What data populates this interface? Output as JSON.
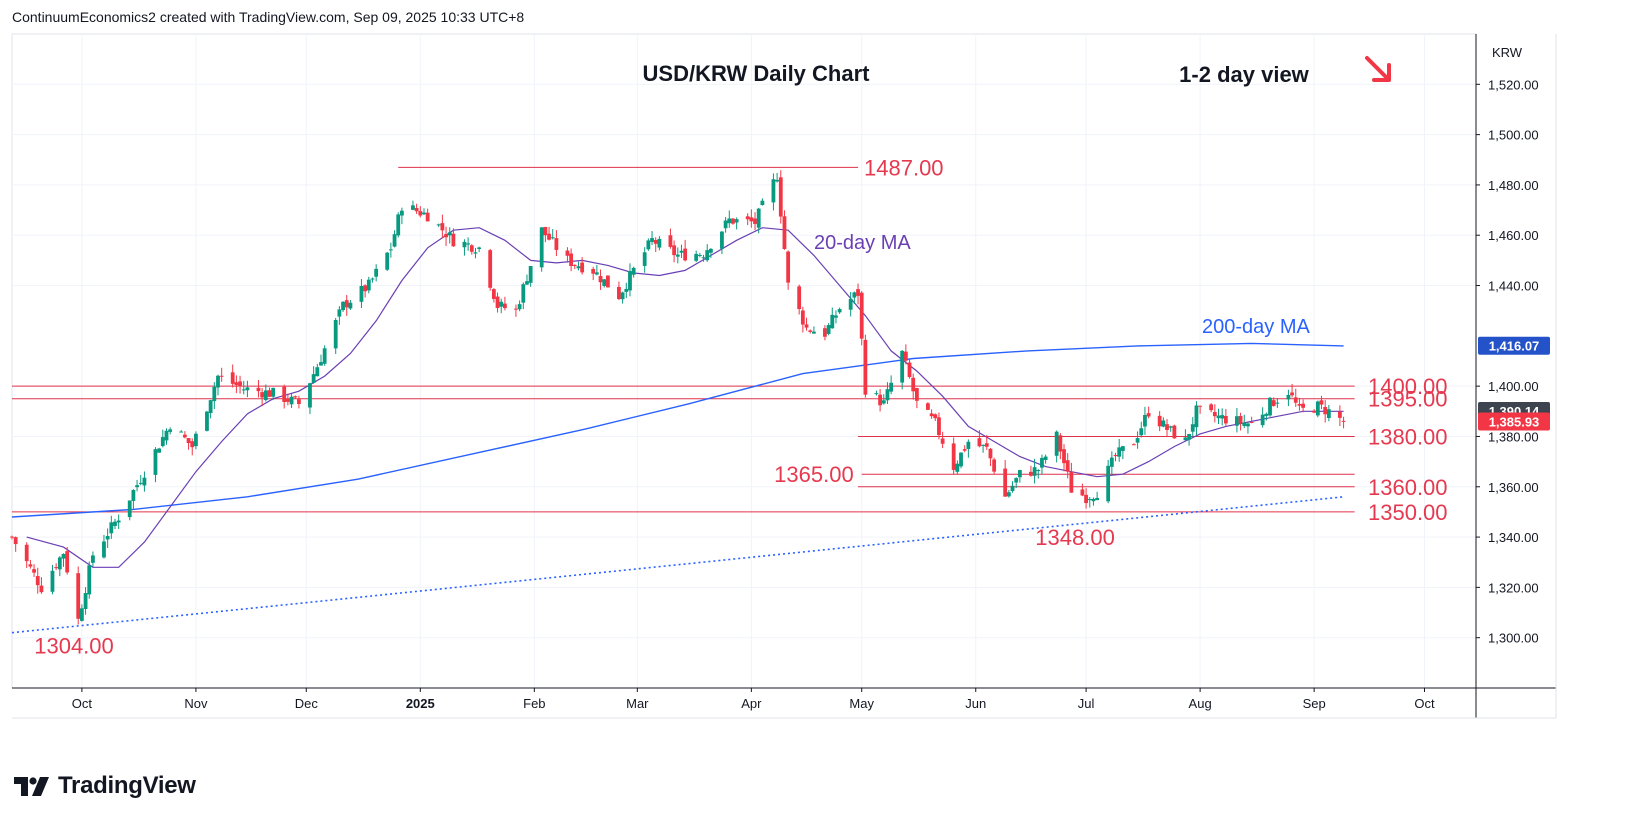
{
  "header": {
    "credit": "ContinuumEconomics2 created with TradingView.com, Sep 09, 2025 10:33 UTC+8"
  },
  "branding": {
    "logo_text": "TradingView",
    "logo_icon": "tradingview-logo-icon"
  },
  "colors": {
    "up": "#089981",
    "down": "#f23645",
    "ma20": "#6a3fb5",
    "ma200": "#2962ff",
    "level_line": "#e0314a",
    "label_red": "#e53950",
    "arrow": "#f23645",
    "price_tag_dark": "#131722",
    "ma200_tag": "#2453c9",
    "ma20_tag": "#3e4350"
  },
  "chart_data": {
    "type": "candlestick",
    "title": "USD/KRW Daily Chart",
    "view_label": "1-2 day view",
    "view_arrow_icon": "arrow-down-right-icon",
    "currency_label": "KRW",
    "ylim": [
      1280,
      1540
    ],
    "y_ticks": [
      {
        "value": 1300,
        "label": "1,300.00"
      },
      {
        "value": 1320,
        "label": "1,320.00"
      },
      {
        "value": 1340,
        "label": "1,340.00"
      },
      {
        "value": 1360,
        "label": "1,360.00"
      },
      {
        "value": 1380,
        "label": "1,380.00"
      },
      {
        "value": 1400,
        "label": "1,400.00"
      },
      {
        "value": 1440,
        "label": "1,440.00"
      },
      {
        "value": 1460,
        "label": "1,460.00"
      },
      {
        "value": 1480,
        "label": "1,480.00"
      },
      {
        "value": 1500,
        "label": "1,500.00"
      },
      {
        "value": 1520,
        "label": "1,520.00"
      }
    ],
    "x_ticks": [
      {
        "date": "2024-10-01",
        "label": "Oct",
        "bold": false
      },
      {
        "date": "2024-11-01",
        "label": "Nov",
        "bold": false
      },
      {
        "date": "2024-12-01",
        "label": "Dec",
        "bold": false
      },
      {
        "date": "2025-01-01",
        "label": "2025",
        "bold": true
      },
      {
        "date": "2025-02-01",
        "label": "Feb",
        "bold": false
      },
      {
        "date": "2025-03-01",
        "label": "Mar",
        "bold": false
      },
      {
        "date": "2025-04-01",
        "label": "Apr",
        "bold": false
      },
      {
        "date": "2025-05-01",
        "label": "May",
        "bold": false
      },
      {
        "date": "2025-06-01",
        "label": "Jun",
        "bold": false
      },
      {
        "date": "2025-07-01",
        "label": "Jul",
        "bold": false
      },
      {
        "date": "2025-08-01",
        "label": "Aug",
        "bold": false
      },
      {
        "date": "2025-09-01",
        "label": "Sep",
        "bold": false
      },
      {
        "date": "2025-10-01",
        "label": "Oct",
        "bold": false
      }
    ],
    "x_range": [
      "2024-09-12",
      "2025-10-15"
    ],
    "price_path": [
      {
        "date": "2024-09-12",
        "close": 1340
      },
      {
        "date": "2024-09-20",
        "close": 1320
      },
      {
        "date": "2024-09-26",
        "close": 1334
      },
      {
        "date": "2024-09-30",
        "close": 1307
      },
      {
        "date": "2024-10-04",
        "close": 1333
      },
      {
        "date": "2024-10-11",
        "close": 1348
      },
      {
        "date": "2024-10-18",
        "close": 1366
      },
      {
        "date": "2024-10-25",
        "close": 1385
      },
      {
        "date": "2024-10-31",
        "close": 1376
      },
      {
        "date": "2024-11-07",
        "close": 1404
      },
      {
        "date": "2024-11-14",
        "close": 1399
      },
      {
        "date": "2024-11-22",
        "close": 1397
      },
      {
        "date": "2024-11-29",
        "close": 1393
      },
      {
        "date": "2024-12-04",
        "close": 1408
      },
      {
        "date": "2024-12-11",
        "close": 1432
      },
      {
        "date": "2024-12-18",
        "close": 1440
      },
      {
        "date": "2024-12-24",
        "close": 1455
      },
      {
        "date": "2024-12-27",
        "close": 1472
      },
      {
        "date": "2025-01-03",
        "close": 1468
      },
      {
        "date": "2025-01-10",
        "close": 1458
      },
      {
        "date": "2025-01-17",
        "close": 1455
      },
      {
        "date": "2025-01-22",
        "close": 1432
      },
      {
        "date": "2025-01-27",
        "close": 1430
      },
      {
        "date": "2025-02-03",
        "close": 1462
      },
      {
        "date": "2025-02-10",
        "close": 1450
      },
      {
        "date": "2025-02-17",
        "close": 1446
      },
      {
        "date": "2025-02-24",
        "close": 1436
      },
      {
        "date": "2025-02-28",
        "close": 1446
      },
      {
        "date": "2025-03-05",
        "close": 1458
      },
      {
        "date": "2025-03-12",
        "close": 1452
      },
      {
        "date": "2025-03-19",
        "close": 1453
      },
      {
        "date": "2025-03-26",
        "close": 1466
      },
      {
        "date": "2025-04-02",
        "close": 1465
      },
      {
        "date": "2025-04-08",
        "close": 1484
      },
      {
        "date": "2025-04-11",
        "close": 1440
      },
      {
        "date": "2025-04-16",
        "close": 1423
      },
      {
        "date": "2025-04-21",
        "close": 1421
      },
      {
        "date": "2025-04-25",
        "close": 1431
      },
      {
        "date": "2025-04-30",
        "close": 1437
      },
      {
        "date": "2025-05-02",
        "close": 1399
      },
      {
        "date": "2025-05-07",
        "close": 1393
      },
      {
        "date": "2025-05-12",
        "close": 1413
      },
      {
        "date": "2025-05-16",
        "close": 1393
      },
      {
        "date": "2025-05-21",
        "close": 1385
      },
      {
        "date": "2025-05-26",
        "close": 1368
      },
      {
        "date": "2025-05-30",
        "close": 1378
      },
      {
        "date": "2025-06-04",
        "close": 1375
      },
      {
        "date": "2025-06-09",
        "close": 1356
      },
      {
        "date": "2025-06-13",
        "close": 1365
      },
      {
        "date": "2025-06-18",
        "close": 1367
      },
      {
        "date": "2025-06-23",
        "close": 1380
      },
      {
        "date": "2025-06-27",
        "close": 1359
      },
      {
        "date": "2025-07-01",
        "close": 1356
      },
      {
        "date": "2025-07-04",
        "close": 1358
      },
      {
        "date": "2025-07-09",
        "close": 1372
      },
      {
        "date": "2025-07-14",
        "close": 1378
      },
      {
        "date": "2025-07-18",
        "close": 1390
      },
      {
        "date": "2025-07-23",
        "close": 1383
      },
      {
        "date": "2025-07-28",
        "close": 1378
      },
      {
        "date": "2025-07-31",
        "close": 1390
      },
      {
        "date": "2025-08-05",
        "close": 1388
      },
      {
        "date": "2025-08-11",
        "close": 1386
      },
      {
        "date": "2025-08-15",
        "close": 1385
      },
      {
        "date": "2025-08-20",
        "close": 1393
      },
      {
        "date": "2025-08-25",
        "close": 1398
      },
      {
        "date": "2025-08-28",
        "close": 1390
      },
      {
        "date": "2025-09-02",
        "close": 1392
      },
      {
        "date": "2025-09-05",
        "close": 1390
      },
      {
        "date": "2025-09-09",
        "close": 1386
      }
    ],
    "ma20_path": [
      {
        "date": "2024-09-16",
        "value": 1340
      },
      {
        "date": "2024-09-26",
        "value": 1336
      },
      {
        "date": "2024-10-04",
        "value": 1328
      },
      {
        "date": "2024-10-11",
        "value": 1328
      },
      {
        "date": "2024-10-18",
        "value": 1338
      },
      {
        "date": "2024-10-25",
        "value": 1352
      },
      {
        "date": "2024-11-01",
        "value": 1366
      },
      {
        "date": "2024-11-08",
        "value": 1378
      },
      {
        "date": "2024-11-15",
        "value": 1389
      },
      {
        "date": "2024-11-22",
        "value": 1395
      },
      {
        "date": "2024-11-29",
        "value": 1398
      },
      {
        "date": "2024-12-06",
        "value": 1404
      },
      {
        "date": "2024-12-13",
        "value": 1413
      },
      {
        "date": "2024-12-20",
        "value": 1426
      },
      {
        "date": "2024-12-27",
        "value": 1442
      },
      {
        "date": "2025-01-03",
        "value": 1455
      },
      {
        "date": "2025-01-10",
        "value": 1462
      },
      {
        "date": "2025-01-17",
        "value": 1463
      },
      {
        "date": "2025-01-24",
        "value": 1458
      },
      {
        "date": "2025-01-31",
        "value": 1450
      },
      {
        "date": "2025-02-07",
        "value": 1449
      },
      {
        "date": "2025-02-14",
        "value": 1450
      },
      {
        "date": "2025-02-21",
        "value": 1448
      },
      {
        "date": "2025-02-28",
        "value": 1445
      },
      {
        "date": "2025-03-07",
        "value": 1444
      },
      {
        "date": "2025-03-14",
        "value": 1446
      },
      {
        "date": "2025-03-21",
        "value": 1452
      },
      {
        "date": "2025-03-28",
        "value": 1458
      },
      {
        "date": "2025-04-04",
        "value": 1463
      },
      {
        "date": "2025-04-11",
        "value": 1462
      },
      {
        "date": "2025-04-18",
        "value": 1452
      },
      {
        "date": "2025-04-25",
        "value": 1440
      },
      {
        "date": "2025-05-02",
        "value": 1428
      },
      {
        "date": "2025-05-09",
        "value": 1414
      },
      {
        "date": "2025-05-16",
        "value": 1406
      },
      {
        "date": "2025-05-23",
        "value": 1396
      },
      {
        "date": "2025-05-30",
        "value": 1384
      },
      {
        "date": "2025-06-06",
        "value": 1378
      },
      {
        "date": "2025-06-13",
        "value": 1372
      },
      {
        "date": "2025-06-20",
        "value": 1368
      },
      {
        "date": "2025-06-27",
        "value": 1366
      },
      {
        "date": "2025-07-04",
        "value": 1364
      },
      {
        "date": "2025-07-11",
        "value": 1365
      },
      {
        "date": "2025-07-18",
        "value": 1370
      },
      {
        "date": "2025-07-25",
        "value": 1376
      },
      {
        "date": "2025-08-01",
        "value": 1381
      },
      {
        "date": "2025-08-08",
        "value": 1384
      },
      {
        "date": "2025-08-15",
        "value": 1386
      },
      {
        "date": "2025-08-22",
        "value": 1388
      },
      {
        "date": "2025-08-29",
        "value": 1390
      },
      {
        "date": "2025-09-09",
        "value": 1390
      }
    ],
    "ma200_path": [
      {
        "date": "2024-09-12",
        "value": 1348
      },
      {
        "date": "2024-10-15",
        "value": 1351
      },
      {
        "date": "2024-11-15",
        "value": 1356
      },
      {
        "date": "2024-12-15",
        "value": 1363
      },
      {
        "date": "2025-01-15",
        "value": 1373
      },
      {
        "date": "2025-02-15",
        "value": 1383
      },
      {
        "date": "2025-03-15",
        "value": 1393
      },
      {
        "date": "2025-04-15",
        "value": 1405
      },
      {
        "date": "2025-05-15",
        "value": 1411
      },
      {
        "date": "2025-06-15",
        "value": 1414
      },
      {
        "date": "2025-07-15",
        "value": 1416
      },
      {
        "date": "2025-08-15",
        "value": 1417
      },
      {
        "date": "2025-09-09",
        "value": 1416
      }
    ],
    "trendline": {
      "start": {
        "date": "2024-09-12",
        "value": 1302
      },
      "end": {
        "date": "2025-09-09",
        "value": 1356
      }
    },
    "ma20_label": "20-day MA",
    "ma200_label": "200-day MA",
    "levels": [
      {
        "value": 1487,
        "label": "1487.00",
        "from": "2024-12-26",
        "to": "2025-04-30",
        "label_pos": "right-of-line"
      },
      {
        "value": 1400,
        "label": "1400.00",
        "from": "2024-09-12",
        "to": "2025-09-12",
        "label_pos": "right"
      },
      {
        "value": 1395,
        "label": "1395.00",
        "from": "2024-09-12",
        "to": "2025-09-12",
        "label_pos": "right"
      },
      {
        "value": 1380,
        "label": "1380.00",
        "from": "2025-04-30",
        "to": "2025-09-12",
        "label_pos": "right"
      },
      {
        "value": 1365,
        "label": "1365.00",
        "from": "2025-05-01",
        "to": "2025-09-12",
        "label_pos": "left-of-line"
      },
      {
        "value": 1360,
        "label": "1360.00",
        "from": "2025-04-30",
        "to": "2025-09-12",
        "label_pos": "right"
      },
      {
        "value": 1350,
        "label": "1350.00",
        "from": "2024-09-12",
        "to": "2025-09-12",
        "label_pos": "right"
      }
    ],
    "annotations": [
      {
        "text": "1348.00",
        "date": "2025-06-28",
        "value": 1348
      },
      {
        "text": "1304.00",
        "date": "2024-09-30",
        "value": 1304
      }
    ],
    "price_tags": [
      {
        "value": 1416.07,
        "label": "1,416.07",
        "color_key": "ma200_tag"
      },
      {
        "value": 1390.14,
        "label": "1,390.14",
        "color_key": "ma20_tag"
      },
      {
        "value": 1385.93,
        "label": "1,385.93",
        "color_key": "down"
      }
    ],
    "grid": true
  }
}
